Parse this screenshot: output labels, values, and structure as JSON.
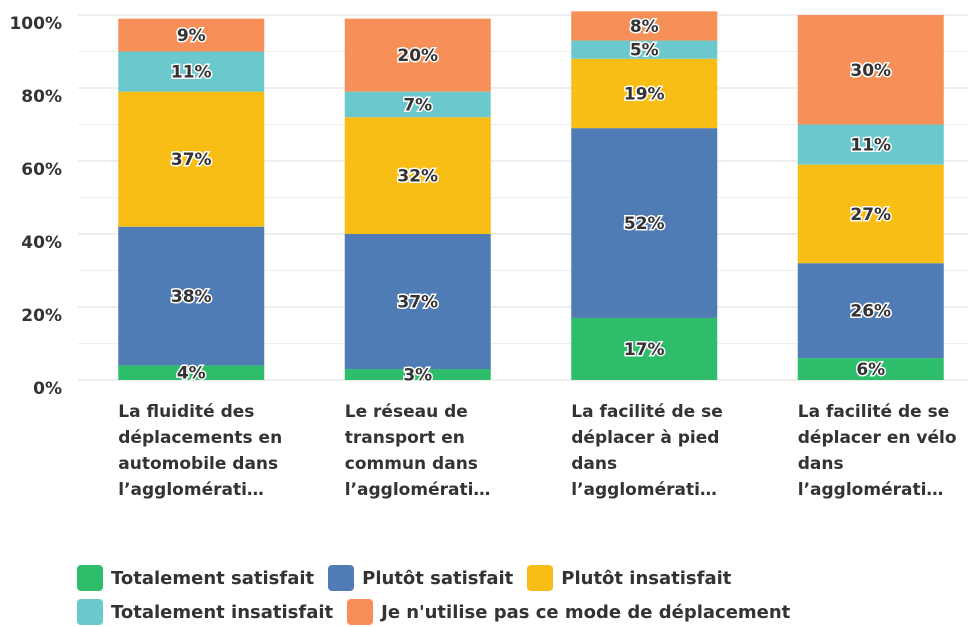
{
  "chart_data": {
    "type": "stacked_bar",
    "categories": [
      "La fluidité des déplacements en automobile dans l’agglomérati…",
      "Le réseau de transport en commun dans l’agglomérati…",
      "La facilité de se déplacer à pied dans l’agglomérati…",
      "La facilité de se déplacer en vélo dans l’agglomérati…"
    ],
    "series": [
      {
        "name": "Totalement satisfait",
        "color": "#2ebd6b",
        "values": [
          4,
          3,
          17,
          6
        ],
        "value_labels": [
          "4%",
          "3%",
          "17%",
          "6%"
        ]
      },
      {
        "name": "Plutôt satisfait",
        "color": "#507cb6",
        "values": [
          38,
          37,
          52,
          26
        ],
        "value_labels": [
          "38%",
          "37%",
          "52%",
          "26%"
        ]
      },
      {
        "name": "Plutôt insatisfait",
        "color": "#f9be15",
        "values": [
          37,
          32,
          19,
          27
        ],
        "value_labels": [
          "37%",
          "32%",
          "19%",
          "27%"
        ]
      },
      {
        "name": "Totalement insatisfait",
        "color": "#6bc8cd",
        "values": [
          11,
          7,
          5,
          11
        ],
        "value_labels": [
          "11%",
          "7%",
          "5%",
          "11%"
        ]
      },
      {
        "name": "Je n'utilise pas ce mode de déplacement",
        "color": "#f79058",
        "values": [
          9,
          20,
          8,
          30
        ],
        "value_labels": [
          "9%",
          "20%",
          "8%",
          "30%"
        ]
      }
    ],
    "ylim": [
      0,
      100
    ],
    "yticks": [
      {
        "value": 0,
        "label": "0%"
      },
      {
        "value": 20,
        "label": "20%"
      },
      {
        "value": 40,
        "label": "40%"
      },
      {
        "value": 60,
        "label": "60%"
      },
      {
        "value": 80,
        "label": "80%"
      },
      {
        "value": 100,
        "label": "100%"
      }
    ],
    "minor_yticks": [
      10,
      30,
      50,
      70,
      90
    ],
    "grid": true
  }
}
